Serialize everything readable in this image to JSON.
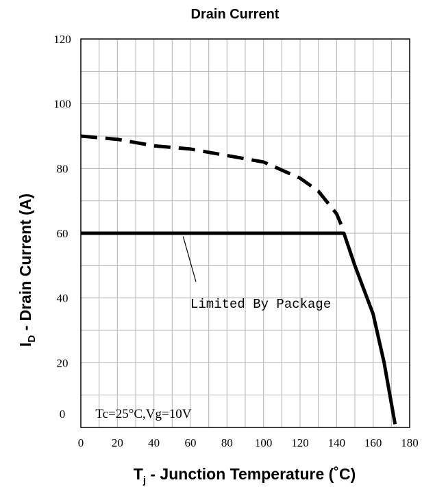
{
  "chart_data": {
    "type": "line",
    "title": "Drain Current",
    "xlabel": {
      "main": "T",
      "sub": "j",
      "rest": " - Junction Temperature (˚C)"
    },
    "ylabel": {
      "main": "I",
      "sub": "D",
      "rest": " - Drain Current (A)"
    },
    "xlim": [
      0,
      180
    ],
    "ylim": [
      0,
      120
    ],
    "x_ticks": [
      0,
      20,
      40,
      60,
      80,
      100,
      120,
      140,
      160,
      180
    ],
    "y_ticks": [
      0,
      20,
      40,
      60,
      80,
      100,
      120
    ],
    "x_grid_step": 10,
    "y_grid_step": 10,
    "grid": true,
    "series": [
      {
        "style": "dashed",
        "x": [
          0,
          20,
          40,
          60,
          80,
          100,
          120,
          130,
          140,
          143
        ],
        "y": [
          90,
          89,
          87,
          86,
          84,
          82,
          77,
          73,
          66,
          62
        ]
      },
      {
        "style": "solid",
        "x": [
          0,
          25,
          50,
          75,
          100,
          125,
          144,
          150,
          160,
          166,
          172
        ],
        "y": [
          60,
          60,
          60,
          60,
          60,
          60,
          60,
          50,
          35,
          20,
          1
        ]
      }
    ],
    "annotations": [
      {
        "text": "Limited By Package",
        "x": 60,
        "y": 37,
        "pointer_from": [
          56,
          59
        ],
        "pointer_to": [
          63,
          45
        ]
      },
      {
        "text": "Tc=25°C,Vg=10V",
        "x": 8,
        "y": 3
      }
    ]
  }
}
